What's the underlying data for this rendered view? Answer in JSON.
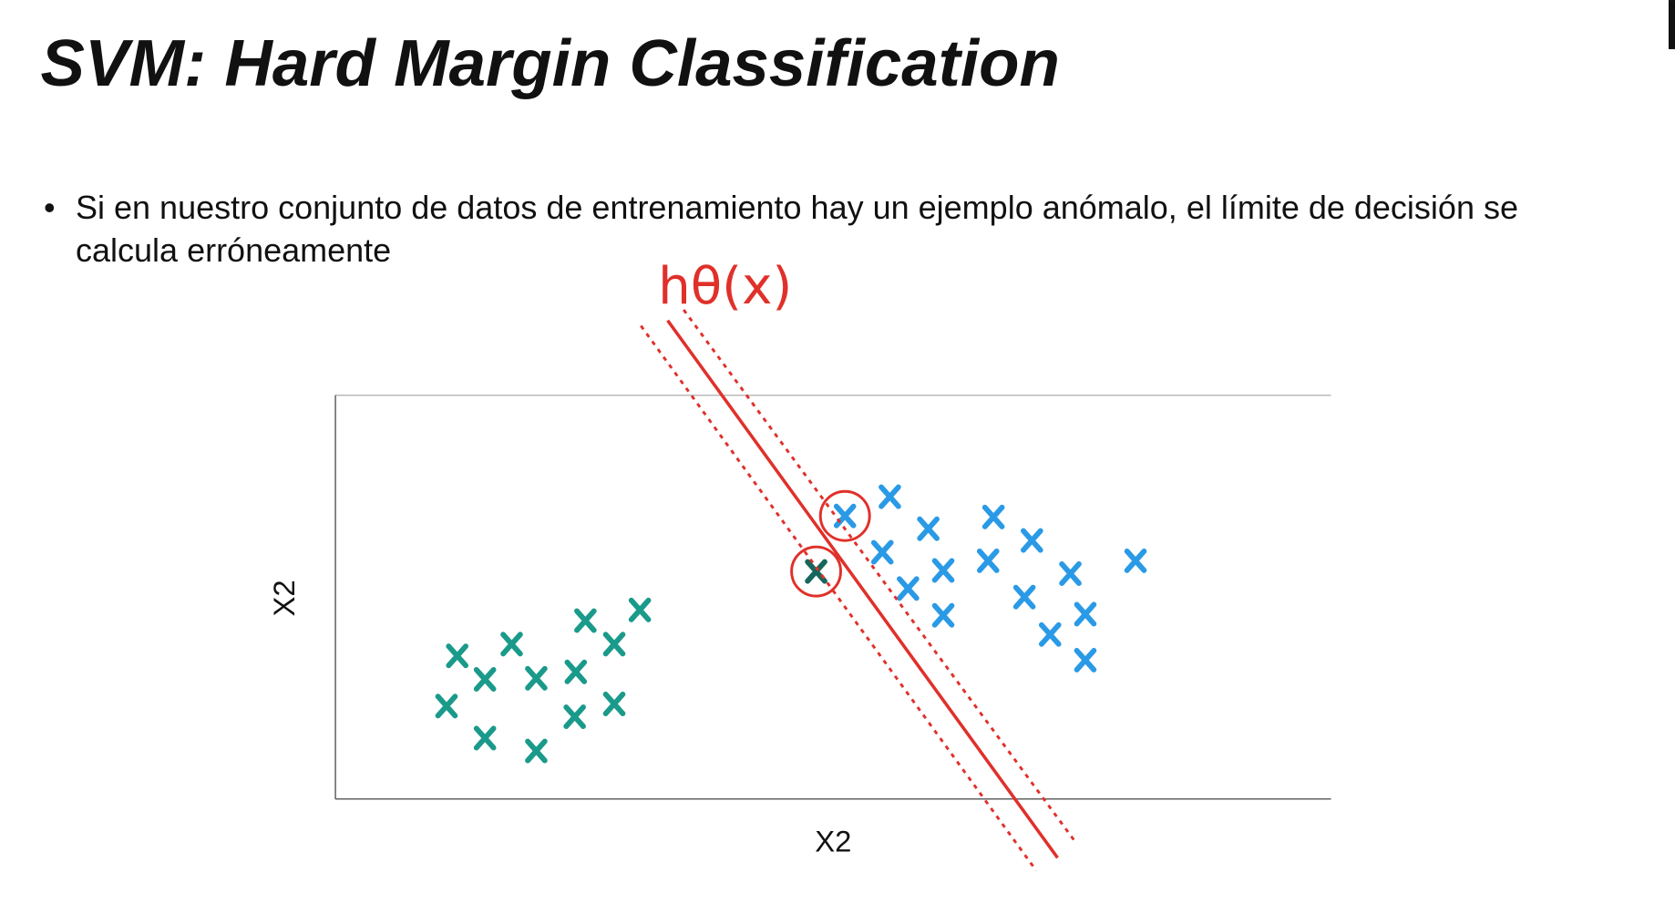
{
  "header": {
    "title": "SVM: Hard Margin Classification"
  },
  "bullets": [
    "Si en nuestro conjunto de datos de entrenamiento hay un ejemplo anómalo, el límite de decisión se calcula erróneamente"
  ],
  "annotation": "hθ(x)",
  "figure": {
    "y_label": "X2",
    "x_label": "X2"
  }
}
